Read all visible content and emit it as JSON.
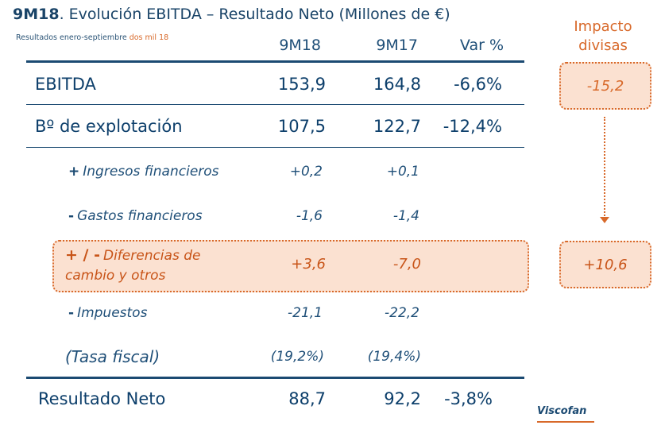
{
  "header": {
    "title_bold": "9M18",
    "title_rest": ". Evolución  EBITDA – Resultado Neto (Millones de €)",
    "subtitle_main": "Resultados enero-septiembre ",
    "subtitle_accent": "dos mil 18"
  },
  "columns": [
    "9M18",
    "9M17",
    "Var %"
  ],
  "rows": {
    "ebitda": {
      "label": "EBITDA",
      "v18": "153,9",
      "v17": "164,8",
      "var": "-6,6%"
    },
    "bexp": {
      "label": "Bº de explotación",
      "v18": "107,5",
      "v17": "122,7",
      "var": "-12,4%"
    },
    "ingresos": {
      "sign": "+",
      "label": "Ingresos financieros",
      "v18": "+0,2",
      "v17": "+0,1"
    },
    "gastos": {
      "sign": "-",
      "label": "Gastos financieros",
      "v18": "-1,6",
      "v17": "-1,4"
    },
    "diferencias": {
      "sign": "+ / -",
      "label_line1": "Diferencias de",
      "label_line2": "cambio y otros",
      "v18": "+3,6",
      "v17": "-7,0"
    },
    "impuestos": {
      "sign": "-",
      "label": "Impuestos",
      "v18": "-21,1",
      "v17": "-22,2"
    },
    "tasa": {
      "label": "(Tasa fiscal)",
      "v18": "(19,2%)",
      "v17": "(19,4%)"
    },
    "neto": {
      "label": "Resultado Neto",
      "v18": "88,7",
      "v17": "92,2",
      "var": "-3,8%"
    }
  },
  "impacto": {
    "title_line1": "Impacto",
    "title_line2": "divisas",
    "ebitda_value": "-15,2",
    "diferencias_value": "+10,6"
  },
  "logo": {
    "text": "Viscofan"
  },
  "colors": {
    "navy": "#0d3f6b",
    "orange": "#d8692a",
    "highlight": "#fbe1d1"
  }
}
